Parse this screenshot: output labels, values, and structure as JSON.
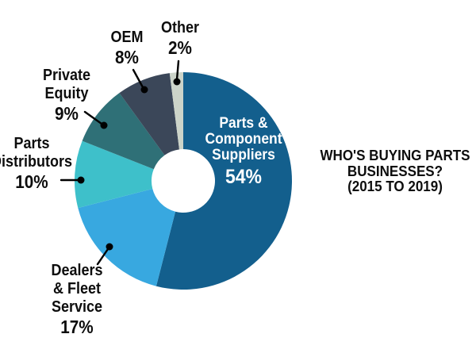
{
  "page": {
    "background_color": "#ffffff",
    "text_color": "#0d0d0d"
  },
  "title": {
    "line1": "WHO'S BUYING PARTS",
    "line2": "BUSINESSES?",
    "line3": "(2015 TO 2019)",
    "full": "WHO'S BUYING PARTS BUSINESSES? (2015 TO 2019)"
  },
  "chart_data": {
    "type": "pie",
    "subtype": "donut",
    "title": "WHO'S BUYING PARTS BUSINESSES? (2015 TO 2019)",
    "unit": "percent",
    "total": 100,
    "start_angle_deg": 0,
    "direction": "clockwise",
    "donut_hole_ratio": 0.29,
    "legend_position": "none",
    "label_style": "outside-callouts-with-dots",
    "categories": [
      "Parts & Component Suppliers",
      "Dealers & Fleet Service",
      "Parts Distributors",
      "Private Equity",
      "OEM",
      "Other"
    ],
    "values": [
      54,
      17,
      10,
      9,
      8,
      2
    ],
    "colors": [
      "#135F8D",
      "#38A8E0",
      "#3EC0CA",
      "#2F7077",
      "#3B4759",
      "#CCD4C9"
    ],
    "slices": [
      {
        "name": "Parts & Component Suppliers",
        "value": 54,
        "pct_label": "54%",
        "color": "#135F8D",
        "text_color": "#ffffff",
        "label_lines": [
          "Parts &",
          "Component",
          "Suppliers"
        ],
        "label_placement": "inside"
      },
      {
        "name": "Dealers & Fleet Service",
        "value": 17,
        "pct_label": "17%",
        "color": "#38A8E0",
        "text_color": "#0d0d0d",
        "label_lines": [
          "Dealers",
          "& Fleet",
          "Service"
        ],
        "label_placement": "outside"
      },
      {
        "name": "Parts Distributors",
        "value": 10,
        "pct_label": "10%",
        "color": "#3EC0CA",
        "text_color": "#0d0d0d",
        "label_lines": [
          "Parts",
          "Distributors"
        ],
        "label_placement": "outside"
      },
      {
        "name": "Private Equity",
        "value": 9,
        "pct_label": "9%",
        "color": "#2F7077",
        "text_color": "#0d0d0d",
        "label_lines": [
          "Private",
          "Equity"
        ],
        "label_placement": "outside"
      },
      {
        "name": "OEM",
        "value": 8,
        "pct_label": "8%",
        "color": "#3B4759",
        "text_color": "#0d0d0d",
        "label_lines": [
          "OEM"
        ],
        "label_placement": "outside"
      },
      {
        "name": "Other",
        "value": 2,
        "pct_label": "2%",
        "color": "#CCD4C9",
        "text_color": "#0d0d0d",
        "label_lines": [
          "Other"
        ],
        "label_placement": "outside"
      }
    ],
    "callout_color": "#000000"
  }
}
